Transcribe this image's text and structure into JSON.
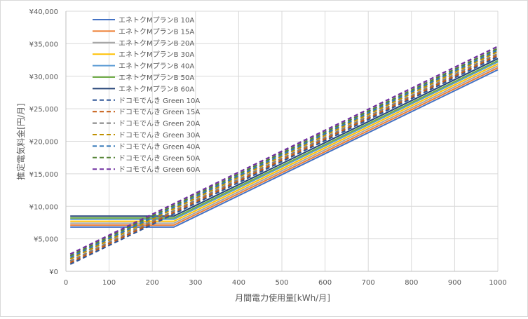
{
  "chart_data": {
    "type": "line",
    "title": "",
    "xlabel": "月間電力使用量[kWh/月]",
    "ylabel": "推定電気料金[円/月]",
    "xlim": [
      0,
      1000
    ],
    "ylim": [
      0,
      40000
    ],
    "x_ticks": [
      "0",
      "100",
      "200",
      "300",
      "400",
      "500",
      "600",
      "700",
      "800",
      "900",
      "1000"
    ],
    "y_ticks": [
      "¥0",
      "¥5,000",
      "¥10,000",
      "¥15,000",
      "¥20,000",
      "¥25,000",
      "¥30,000",
      "¥35,000",
      "¥40,000"
    ],
    "grid": true,
    "legend_position": "top-left",
    "series": [
      {
        "name": "エネトクMプランB 10A",
        "color": "#4472C4",
        "style": "solid",
        "x": [
          10,
          250,
          1000
        ],
        "y": [
          6800,
          6800,
          31000
        ]
      },
      {
        "name": "エネトクMプランB 15A",
        "color": "#ED7D31",
        "style": "solid",
        "x": [
          10,
          250,
          1000
        ],
        "y": [
          7100,
          7100,
          31300
        ]
      },
      {
        "name": "エネトクMプランB 20A",
        "color": "#A5A5A5",
        "style": "solid",
        "x": [
          10,
          250,
          1000
        ],
        "y": [
          7400,
          7400,
          31600
        ]
      },
      {
        "name": "エネトクMプランB 30A",
        "color": "#FFC000",
        "style": "solid",
        "x": [
          10,
          250,
          1000
        ],
        "y": [
          7700,
          7700,
          31900
        ]
      },
      {
        "name": "エネトクMプランB 40A",
        "color": "#5B9BD5",
        "style": "solid",
        "x": [
          10,
          250,
          1000
        ],
        "y": [
          8000,
          8000,
          32200
        ]
      },
      {
        "name": "エネトクMプランB 50A",
        "color": "#70AD47",
        "style": "solid",
        "x": [
          10,
          250,
          1000
        ],
        "y": [
          8200,
          8200,
          32400
        ]
      },
      {
        "name": "エネトクMプランB 60A",
        "color": "#264478",
        "style": "solid",
        "x": [
          10,
          250,
          1000
        ],
        "y": [
          8500,
          8500,
          32700
        ]
      },
      {
        "name": "ドコモでんき Green 10A",
        "color": "#2F5597",
        "style": "dashed",
        "x": [
          10,
          1000
        ],
        "y": [
          1100,
          33000
        ]
      },
      {
        "name": "ドコモでんき Green 15A",
        "color": "#C55A11",
        "style": "dashed",
        "x": [
          10,
          1000
        ],
        "y": [
          1350,
          33250
        ]
      },
      {
        "name": "ドコモでんき Green 20A",
        "color": "#7F7F7F",
        "style": "dashed",
        "x": [
          10,
          1000
        ],
        "y": [
          1600,
          33500
        ]
      },
      {
        "name": "ドコモでんき Green 30A",
        "color": "#BF9000",
        "style": "dashed",
        "x": [
          10,
          1000
        ],
        "y": [
          1900,
          33800
        ]
      },
      {
        "name": "ドコモでんき Green 40A",
        "color": "#2E75B6",
        "style": "dashed",
        "x": [
          10,
          1000
        ],
        "y": [
          2150,
          34050
        ]
      },
      {
        "name": "ドコモでんき Green 50A",
        "color": "#548235",
        "style": "dashed",
        "x": [
          10,
          1000
        ],
        "y": [
          2400,
          34300
        ]
      },
      {
        "name": "ドコモでんき Green 60A",
        "color": "#7030A0",
        "style": "dashed",
        "x": [
          10,
          1000
        ],
        "y": [
          2650,
          34600
        ]
      }
    ]
  }
}
